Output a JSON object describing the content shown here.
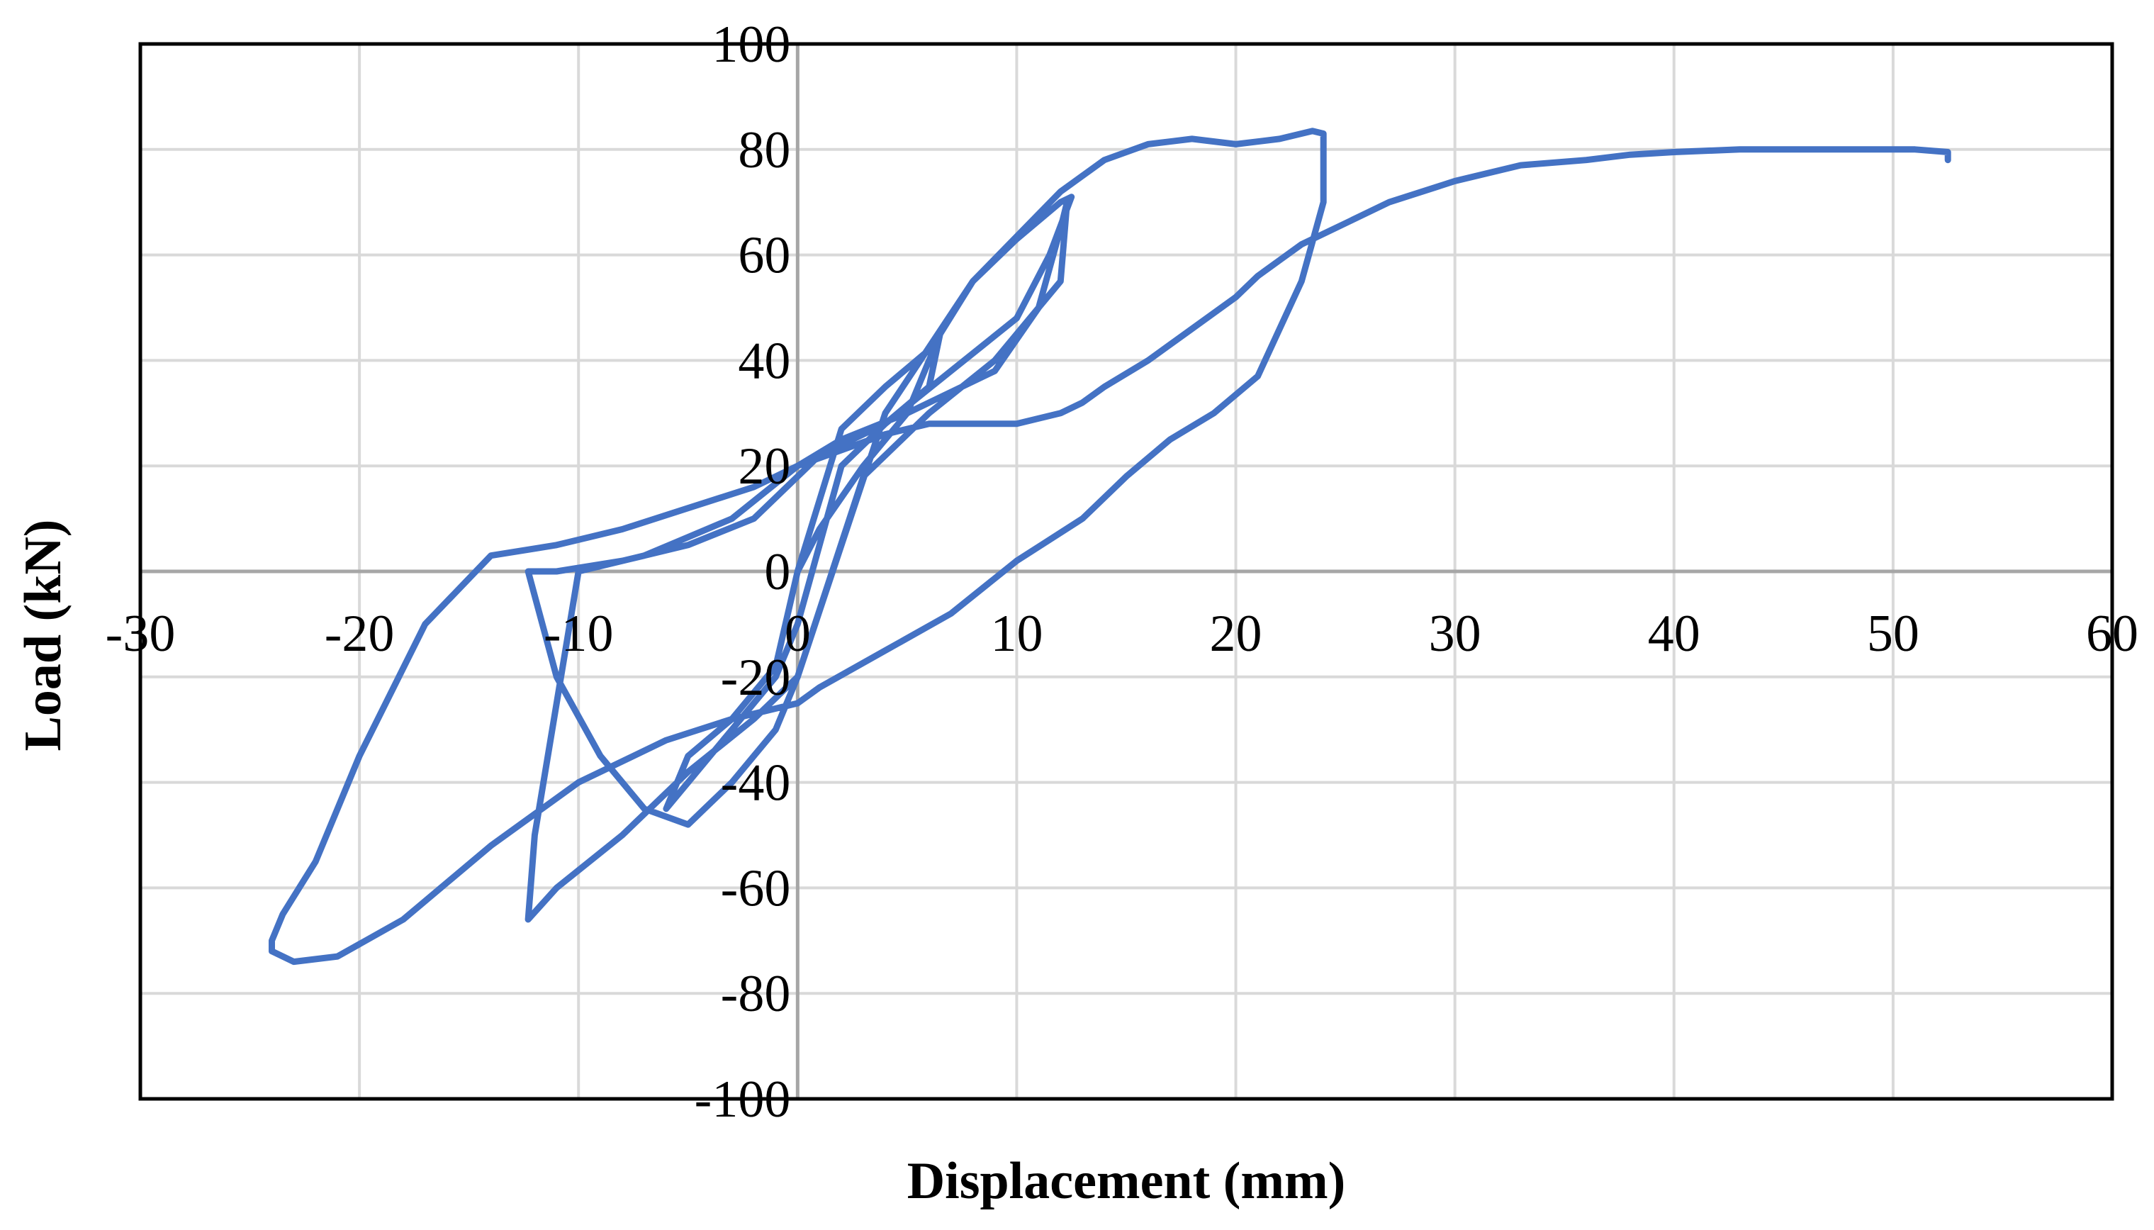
{
  "chart_data": {
    "type": "line",
    "xlabel": "Displacement (mm)",
    "ylabel": "Load (kN)",
    "xlim": [
      -30,
      60
    ],
    "ylim": [
      -100,
      100
    ],
    "x_ticks": [
      -30,
      -20,
      -10,
      0,
      10,
      20,
      30,
      40,
      50,
      60
    ],
    "y_ticks": [
      -100,
      -80,
      -60,
      -40,
      -20,
      0,
      20,
      40,
      60,
      80,
      100
    ],
    "x_tick_labels": [
      "-30",
      "-20",
      "-10",
      "0",
      "10",
      "20",
      "30",
      "40",
      "50",
      "60"
    ],
    "y_tick_labels": [
      "-100",
      "-80",
      "-60",
      "-40",
      "-20",
      "0",
      "20",
      "40",
      "60",
      "80",
      "100"
    ],
    "grid": true,
    "legend": "none",
    "colors": {
      "series": "#4472C4",
      "grid": "#d9d9d9",
      "axis": "#a6a6a6",
      "frame": "#000000"
    },
    "series": [
      {
        "x": [
          0,
          2,
          4,
          6,
          6.5,
          5,
          3,
          1,
          0,
          -1,
          -3,
          -5,
          -6,
          -5,
          -3,
          -1,
          0,
          2,
          4,
          6,
          6.5,
          8,
          10,
          12,
          12.5,
          11.5,
          10,
          7,
          4,
          1,
          0,
          -2,
          -5,
          -8,
          -11,
          -12.3,
          -11,
          -9,
          -7,
          -5,
          -3,
          -1,
          0,
          3,
          6,
          9,
          12,
          12.3,
          12,
          11,
          9,
          7,
          5,
          2,
          0,
          -3,
          -7,
          -10,
          -12,
          -12.3,
          -11,
          -8,
          -5,
          -2,
          0,
          4,
          8,
          12,
          14,
          16,
          18,
          20,
          22,
          23.5,
          24,
          24,
          23,
          21,
          19,
          17,
          15,
          13,
          10,
          7,
          4,
          1,
          0,
          -3,
          -6,
          -10,
          -14,
          -18,
          -21,
          -23,
          -24,
          -24,
          -23.5,
          -22,
          -20,
          -17,
          -14,
          -11,
          -8,
          -5,
          -2,
          0,
          2,
          4,
          6,
          8,
          10,
          12,
          13,
          14,
          16,
          18,
          20,
          21,
          22,
          23,
          24,
          25,
          27,
          30,
          33,
          36,
          38,
          40,
          43,
          46,
          49,
          51,
          52.5,
          52.5
        ],
        "y": [
          0,
          27,
          35,
          42,
          45,
          30,
          20,
          8,
          0,
          -18,
          -28,
          -35,
          -45,
          -40,
          -30,
          -20,
          -10,
          20,
          28,
          35,
          45,
          55,
          63,
          70,
          71,
          60,
          48,
          38,
          28,
          22,
          18,
          10,
          5,
          2,
          0,
          0,
          -20,
          -35,
          -45,
          -48,
          -40,
          -30,
          -20,
          18,
          30,
          40,
          55,
          70,
          65,
          50,
          38,
          34,
          30,
          25,
          20,
          10,
          3,
          0,
          -50,
          -66,
          -60,
          -50,
          -38,
          -28,
          -20,
          30,
          55,
          72,
          78,
          81,
          82,
          81,
          82,
          83.5,
          83,
          70,
          55,
          37,
          30,
          25,
          18,
          10,
          2,
          -8,
          -15,
          -22,
          -25,
          -28,
          -32,
          -40,
          -52,
          -66,
          -73,
          -74,
          -72,
          -70,
          -65,
          -55,
          -35,
          -10,
          3,
          5,
          8,
          12,
          16,
          20,
          23,
          26,
          28,
          28,
          28,
          30,
          32,
          35,
          40,
          46,
          52,
          56,
          59,
          62,
          64,
          66,
          70,
          74,
          77,
          78,
          79,
          79.5,
          80,
          80,
          80,
          80,
          79.5,
          78
        ]
      }
    ]
  }
}
